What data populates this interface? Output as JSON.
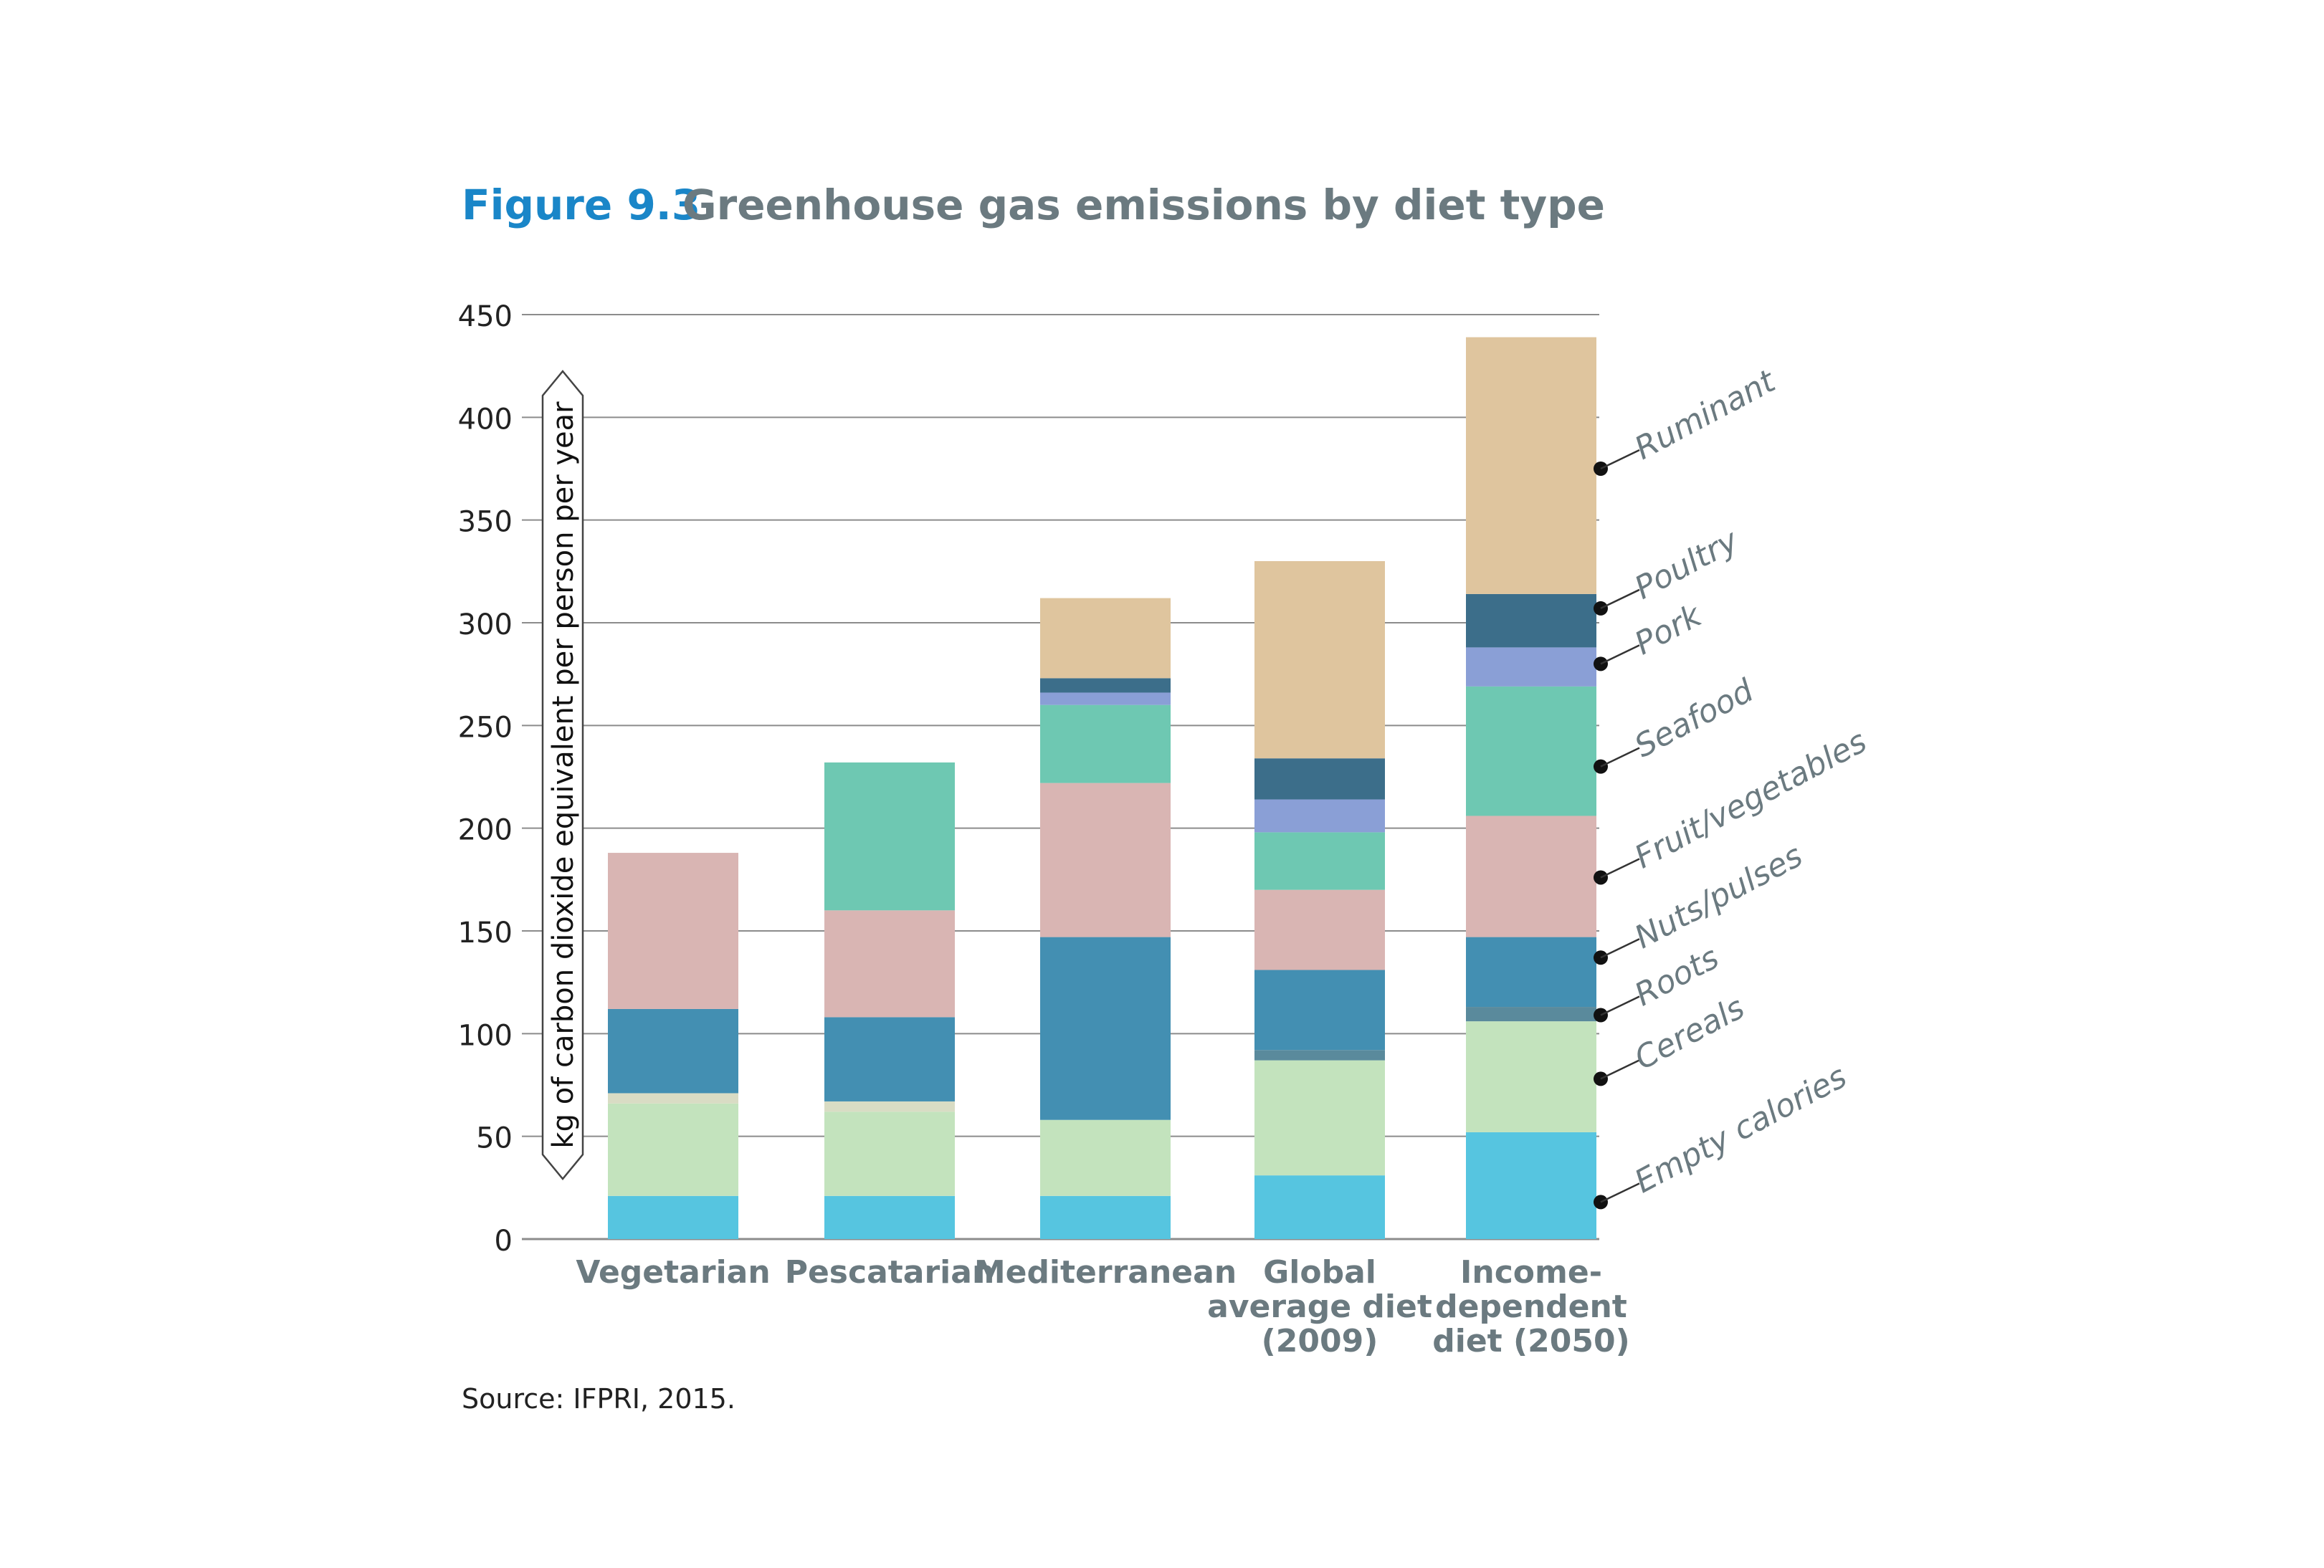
{
  "figure": {
    "number": "Figure 9.3",
    "title": "Greenhouse gas emissions by diet type",
    "source": "Source: IFPRI, 2015."
  },
  "colors": {
    "figure_number": "#1a86c8",
    "title": "#6b7a80",
    "axis_text": "#222222",
    "category_text": "#6b7a80",
    "legend_text": "#6b7a80",
    "gridline": "#8c8c8c"
  },
  "chart_data": {
    "type": "bar",
    "stacked": true,
    "title": "Greenhouse gas emissions by diet type",
    "ylabel": "kg of carbon dioxide equivalent per person per year",
    "xlabel": "",
    "ylim": [
      0,
      450
    ],
    "yticks": [
      0,
      50,
      100,
      150,
      200,
      250,
      300,
      350,
      400,
      450
    ],
    "grid": true,
    "legend_position": "right",
    "categories": [
      [
        "Vegetarian"
      ],
      [
        "Pescatarian"
      ],
      [
        "Mediterranean"
      ],
      [
        "Global",
        "average diet",
        "(2009)"
      ],
      [
        "Income-",
        "dependent",
        "diet (2050)"
      ]
    ],
    "series": [
      {
        "name": "Empty calories",
        "color": "#56c5e0",
        "values": [
          21,
          21,
          21,
          31,
          52
        ]
      },
      {
        "name": "Cereals",
        "color": "#c3e3bd",
        "values": [
          45,
          41,
          37,
          56,
          54
        ]
      },
      {
        "name": "Roots",
        "color": "#d9dcc4",
        "values": [
          5,
          5,
          0,
          0,
          0
        ]
      },
      {
        "name": "Roots",
        "color": "#5a8a9c",
        "values": [
          0,
          0,
          0,
          5,
          7
        ]
      },
      {
        "name": "Nuts/pulses",
        "color": "#438fb2",
        "values": [
          41,
          41,
          89,
          39,
          34
        ]
      },
      {
        "name": "Fruit/vegetables",
        "color": "#d9b5b3",
        "values": [
          76,
          52,
          75,
          39,
          59
        ]
      },
      {
        "name": "Seafood",
        "color": "#6ec8b2",
        "values": [
          0,
          72,
          38,
          28,
          63
        ]
      },
      {
        "name": "Pork",
        "color": "#8a9fd6",
        "values": [
          0,
          0,
          6,
          16,
          19
        ]
      },
      {
        "name": "Poultry",
        "color": "#3c6e8a",
        "values": [
          0,
          0,
          7,
          20,
          26
        ]
      },
      {
        "name": "Ruminant",
        "color": "#dfc59e",
        "values": [
          0,
          0,
          39,
          96,
          125
        ]
      }
    ],
    "legend": [
      {
        "label": "Ruminant",
        "value": 375
      },
      {
        "label": "Poultry",
        "value": 307
      },
      {
        "label": "Pork",
        "value": 280
      },
      {
        "label": "Seafood",
        "value": 230
      },
      {
        "label": "Fruit/vegetables",
        "value": 176
      },
      {
        "label": "Nuts/pulses",
        "value": 137
      },
      {
        "label": "Roots",
        "value": 109
      },
      {
        "label": "Cereals",
        "value": 78
      },
      {
        "label": "Empty calories",
        "value": 18
      }
    ]
  }
}
